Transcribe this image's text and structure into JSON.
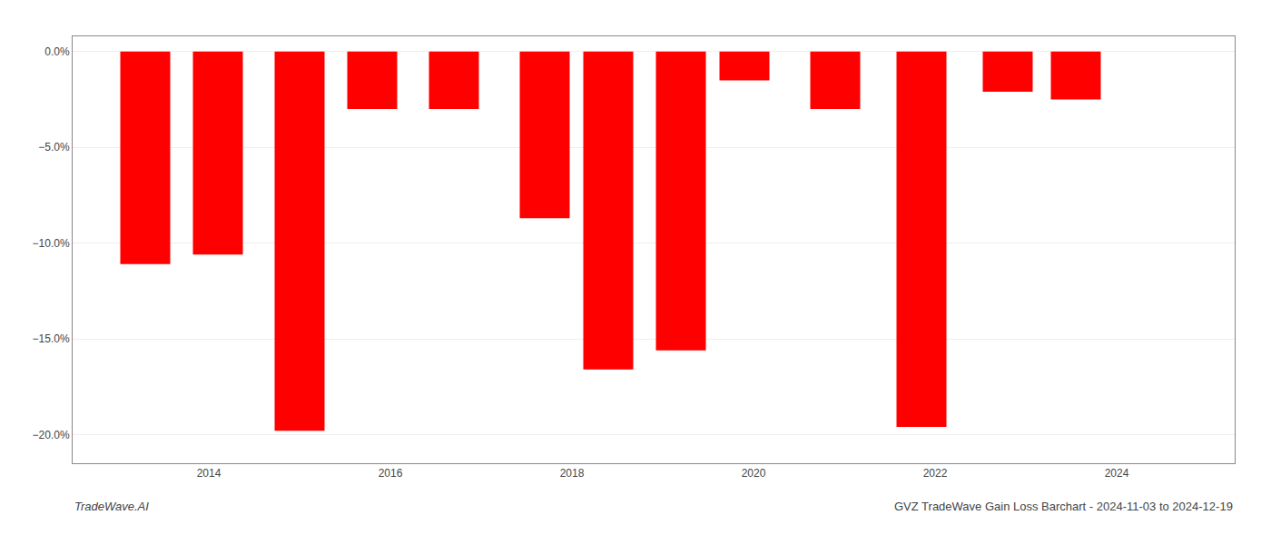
{
  "chart_data": {
    "type": "bar",
    "x": [
      2013.3,
      2014.1,
      2015.0,
      2015.8,
      2016.7,
      2017.7,
      2018.4,
      2019.2,
      2019.9,
      2020.9,
      2021.85,
      2022.8,
      2023.55
    ],
    "values": [
      -11.1,
      -10.6,
      -19.8,
      -3.0,
      -3.0,
      -8.7,
      -16.6,
      -15.6,
      -1.5,
      -3.0,
      -19.6,
      -2.1,
      -2.5
    ],
    "color": "#ff0000",
    "xlim": [
      2012.5,
      2025.3
    ],
    "xticks": [
      2014,
      2016,
      2018,
      2020,
      2022,
      2024
    ],
    "ylim": [
      -21.5,
      0.8
    ],
    "yticks": [
      {
        "value": 0.0,
        "label": "0.0%"
      },
      {
        "value": -5.0,
        "label": "−5.0%"
      },
      {
        "value": -10.0,
        "label": "−10.0%"
      },
      {
        "value": -15.0,
        "label": "−15.0%"
      },
      {
        "value": -20.0,
        "label": "−20.0%"
      }
    ],
    "grid": true,
    "annotations": [
      "TradeWave.AI",
      "GVZ TradeWave Gain Loss Barchart - 2024-11-03 to 2024-12-19"
    ]
  }
}
